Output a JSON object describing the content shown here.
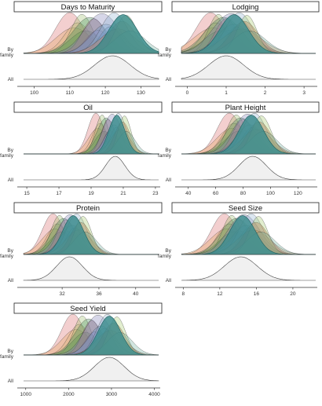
{
  "row_labels": {
    "by_family": [
      "By",
      "family"
    ],
    "all": "All"
  },
  "chart_data": [
    {
      "type": "area",
      "title": "Days to Maturity",
      "xlim": [
        97,
        135
      ],
      "ticks": [
        100,
        110,
        120,
        130
      ],
      "tick_labels": [
        "100",
        "110",
        "120",
        "130"
      ],
      "all_mean": 122,
      "all_sd": 5,
      "family_mean_range": [
        110,
        127
      ],
      "family_sd_range": [
        3,
        5
      ],
      "highlight_mean": 125
    },
    {
      "type": "area",
      "title": "Lodging",
      "xlim": [
        -0.15,
        3.3
      ],
      "ticks": [
        0,
        1,
        2,
        3
      ],
      "tick_labels": [
        "0",
        "1",
        "2",
        "3"
      ],
      "all_mean": 1.0,
      "all_sd": 0.45,
      "family_mean_range": [
        0.6,
        1.6
      ],
      "family_sd_range": [
        0.25,
        0.5
      ],
      "highlight_mean": 1.2
    },
    {
      "type": "area",
      "title": "Oil",
      "xlim": [
        14.8,
        23.2
      ],
      "ticks": [
        15,
        17,
        19,
        21,
        23
      ],
      "tick_labels": [
        "15",
        "17",
        "19",
        "21",
        "23"
      ],
      "all_mean": 20.5,
      "all_sd": 0.6,
      "family_mean_range": [
        19.3,
        21.2
      ],
      "family_sd_range": [
        0.4,
        0.6
      ],
      "highlight_mean": 20.6
    },
    {
      "type": "area",
      "title": "Plant Height",
      "xlim": [
        35,
        133
      ],
      "ticks": [
        40,
        60,
        80,
        100,
        120
      ],
      "tick_labels": [
        "40",
        "60",
        "80",
        "100",
        "120"
      ],
      "all_mean": 87,
      "all_sd": 10,
      "family_mean_range": [
        70,
        95
      ],
      "family_sd_range": [
        7,
        11
      ],
      "highlight_mean": 86
    },
    {
      "type": "area",
      "title": "Protein",
      "xlim": [
        27.8,
        42.5
      ],
      "ticks": [
        32,
        36,
        40
      ],
      "tick_labels": [
        "32",
        "36",
        "40"
      ],
      "all_mean": 32.8,
      "all_sd": 1.4,
      "family_mean_range": [
        31,
        34.5
      ],
      "family_sd_range": [
        0.9,
        1.4
      ],
      "highlight_mean": 33.2
    },
    {
      "type": "area",
      "title": "Seed Size",
      "xlim": [
        7.8,
        22.5
      ],
      "ticks": [
        8,
        12,
        16,
        20
      ],
      "tick_labels": [
        "8",
        "12",
        "16",
        "20"
      ],
      "all_mean": 14.3,
      "all_sd": 1.8,
      "family_mean_range": [
        12.5,
        16.5
      ],
      "family_sd_range": [
        1.0,
        1.8
      ],
      "highlight_mean": 14.5
    },
    {
      "type": "area",
      "title": "Seed Yield",
      "xlim": [
        950,
        4100
      ],
      "ticks": [
        1000,
        2000,
        3000,
        4000
      ],
      "tick_labels": [
        "1000",
        "2000",
        "3000",
        "4000"
      ],
      "all_mean": 2950,
      "all_sd": 350,
      "family_mean_range": [
        2100,
        3200
      ],
      "family_sd_range": [
        200,
        330
      ],
      "highlight_mean": 2950
    }
  ]
}
